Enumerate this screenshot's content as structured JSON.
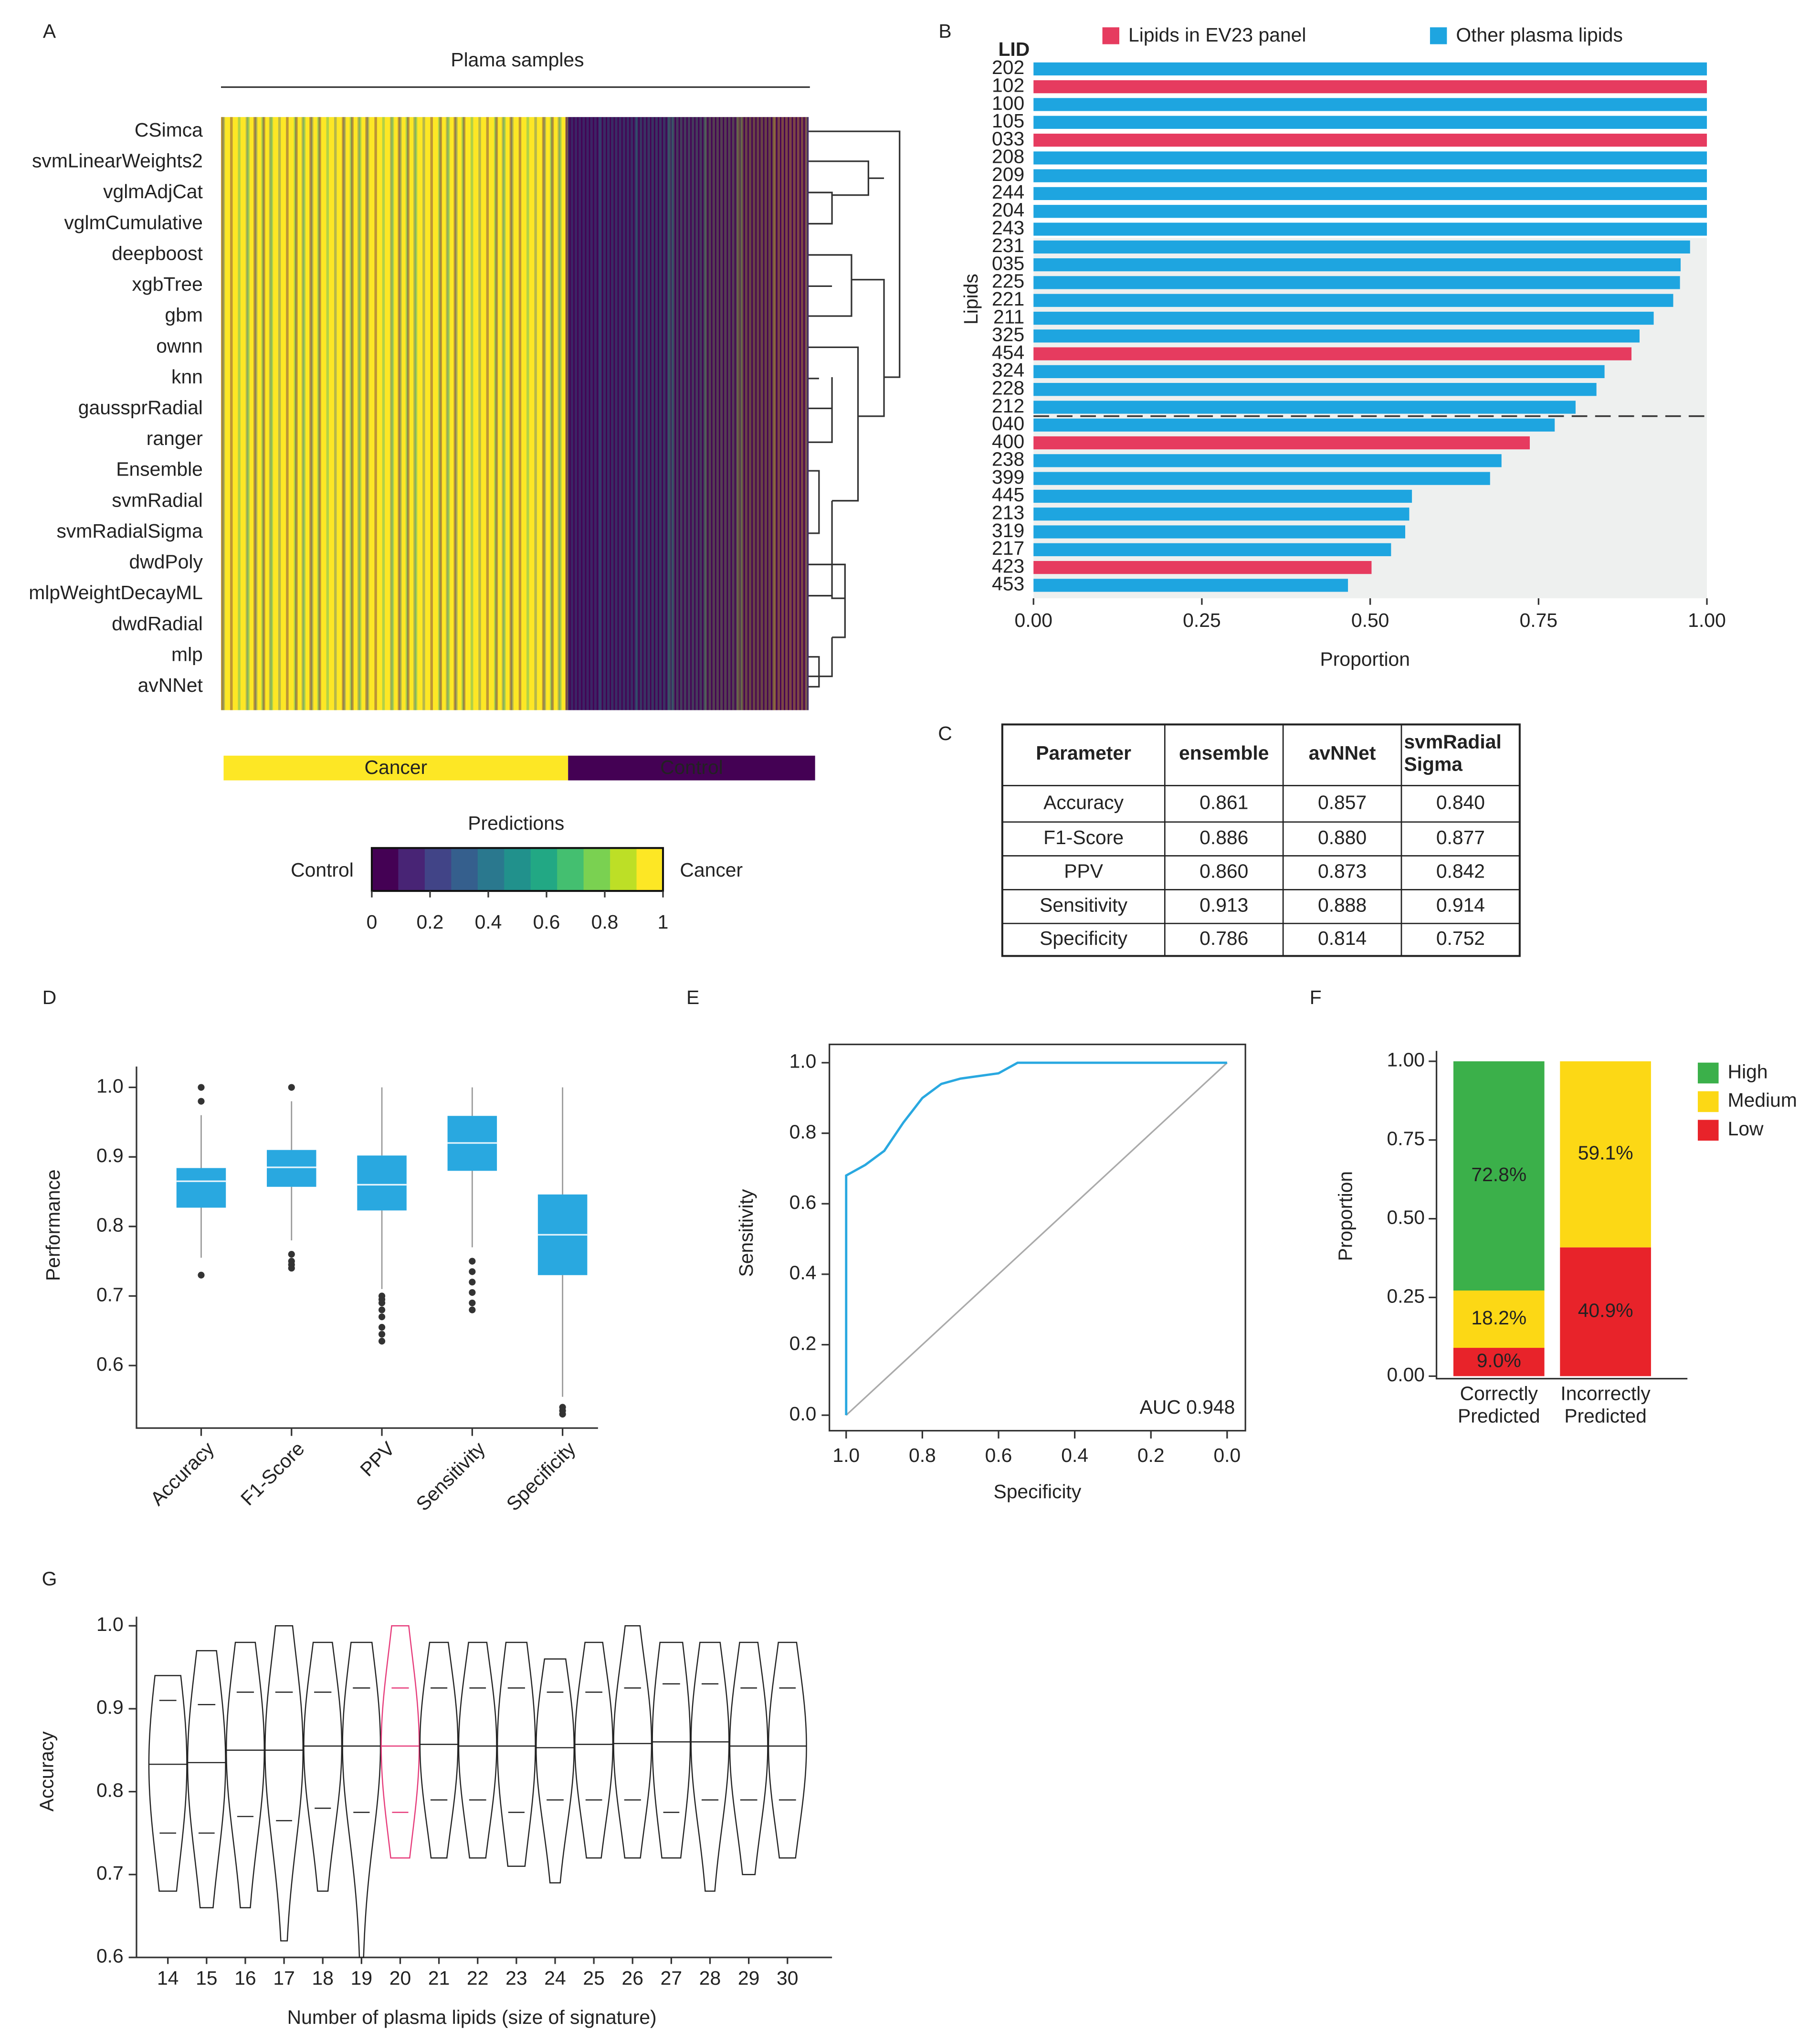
{
  "panel_labels": [
    "A",
    "B",
    "C",
    "D",
    "E",
    "F",
    "G"
  ],
  "chart_data": [
    {
      "type": "heatmap",
      "title": "Plama samples",
      "rows": [
        "CSimca",
        "svmLinearWeights2",
        "vglmAdjCat",
        "vglmCumulative",
        "deepboost",
        "xgbTree",
        "gbm",
        "ownn",
        "knn",
        "gaussprRadial",
        "ranger",
        "Ensemble",
        "svmRadial",
        "svmRadialSigma",
        "dwdPoly",
        "mlpWeightDecayML",
        "dwdRadial",
        "mlp",
        "avNNet"
      ],
      "row_colors": [
        "#222",
        "#222",
        "#222",
        "#222",
        "#222",
        "#222",
        "#222",
        "#222",
        "#222",
        "#222",
        "#222",
        "#29a8e0",
        "#222",
        "#222",
        "#222",
        "#222",
        "#222",
        "#222",
        "#222"
      ],
      "groups": [
        "Cancer",
        "Control"
      ],
      "group_colors": [
        "#fde725",
        "#440154"
      ],
      "colormap": "viridis",
      "colorbar": {
        "title": "Predictions",
        "low_label": "Control",
        "high_label": "Cancer",
        "lim": [
          0,
          1
        ],
        "ticks": [
          0,
          0.2,
          0.4,
          0.6,
          0.8,
          1
        ]
      }
    },
    {
      "type": "barh",
      "category_header": "LID",
      "ylabel": "Lipids",
      "xlabel": "Proportion",
      "categories": [
        "202",
        "102",
        "100",
        "105",
        "033",
        "208",
        "209",
        "244",
        "204",
        "243",
        "231",
        "035",
        "225",
        "221",
        "211",
        "325",
        "454",
        "324",
        "228",
        "212",
        "040",
        "400",
        "238",
        "399",
        "445",
        "213",
        "319",
        "217",
        "423",
        "453"
      ],
      "series": [
        {
          "name": "Lipids in EV23 panel",
          "color": "#e63b5f",
          "values": [
            null,
            1.0,
            null,
            null,
            1.0,
            null,
            null,
            null,
            null,
            null,
            null,
            null,
            null,
            null,
            null,
            null,
            0.888,
            null,
            null,
            null,
            null,
            0.737,
            null,
            null,
            null,
            null,
            null,
            null,
            0.502,
            null
          ]
        },
        {
          "name": "Other plasma lipids",
          "color": "#1ea5e0",
          "values": [
            1.0,
            null,
            1.0,
            1.0,
            null,
            1.0,
            1.0,
            1.0,
            1.0,
            1.0,
            0.975,
            0.961,
            0.96,
            0.95,
            0.921,
            0.9,
            null,
            0.848,
            0.836,
            0.805,
            0.774,
            null,
            0.695,
            0.678,
            0.562,
            0.558,
            0.552,
            0.531,
            null,
            0.467
          ]
        }
      ],
      "xlim": [
        0,
        1
      ],
      "xticks": [
        {
          "value": 0,
          "label": "0.00"
        },
        {
          "value": 0.25,
          "label": "0.25"
        },
        {
          "value": 0.5,
          "label": "0.50"
        },
        {
          "value": 0.75,
          "label": "0.75"
        },
        {
          "value": 1,
          "label": "1.00"
        }
      ]
    },
    {
      "type": "box",
      "ylabel": "Performance",
      "categories": [
        "Accuracy",
        "F1-Score",
        "PPV",
        "Sensitivity",
        "Specificity"
      ],
      "whisker_low": [
        0.755,
        0.78,
        0.71,
        0.77,
        0.555
      ],
      "q1": [
        0.827,
        0.857,
        0.823,
        0.88,
        0.73
      ],
      "median": [
        0.865,
        0.885,
        0.86,
        0.92,
        0.788
      ],
      "q3": [
        0.884,
        0.91,
        0.902,
        0.959,
        0.846
      ],
      "whisker_high": [
        0.96,
        0.98,
        1.0,
        1.0,
        1.0
      ],
      "outliers": [
        [
          1.0,
          0.98,
          0.73
        ],
        [
          1.0,
          0.76,
          0.75,
          0.745,
          0.74
        ],
        [
          0.7,
          0.695,
          0.69,
          0.68,
          0.67,
          0.655,
          0.645,
          0.635
        ],
        [
          0.75,
          0.735,
          0.72,
          0.705,
          0.69,
          0.68
        ],
        [
          0.54,
          0.535,
          0.53
        ]
      ],
      "color": "#29a8e0",
      "ylim": [
        0.51,
        1.03
      ],
      "yticks": [
        0.6,
        0.7,
        0.8,
        0.9,
        {
          "value": 1,
          "label": "1.0"
        }
      ]
    },
    {
      "type": "line",
      "xlabel": "Specificity",
      "ylabel": "Sensitivity",
      "annotation": "AUC 0.948",
      "x": [
        1,
        1,
        0.95,
        0.9,
        0.85,
        0.8,
        0.75,
        0.7,
        0.6,
        0.55,
        0
      ],
      "y": [
        0,
        0.68,
        0.71,
        0.75,
        0.83,
        0.9,
        0.94,
        0.955,
        0.97,
        1,
        1
      ],
      "color": "#29a8e0",
      "reference_color": "#aaaaaa",
      "xlim": [
        1.044,
        -0.048
      ],
      "ylim": [
        -0.044,
        1.052
      ],
      "xticks": [
        {
          "value": 1,
          "label": "1.0"
        },
        0.8,
        0.6,
        0.4,
        0.2,
        {
          "value": 0,
          "label": "0.0"
        }
      ],
      "yticks": [
        {
          "value": 0,
          "label": "0.0"
        },
        0.2,
        0.4,
        0.6,
        0.8,
        {
          "value": 1,
          "label": "1.0"
        }
      ]
    },
    {
      "type": "stacked_bar",
      "ylabel": "Proportion",
      "categories": [
        [
          "Correctly",
          "Predicted"
        ],
        [
          "Incorrectly",
          "Predicted"
        ]
      ],
      "series": [
        {
          "name": "High",
          "color": "#3bb04a",
          "values": [
            0.728,
            null
          ],
          "value_labels": [
            "72.8%",
            null
          ]
        },
        {
          "name": "Medium",
          "color": "#fcd815",
          "values": [
            0.182,
            0.591
          ],
          "value_labels": [
            "18.2%",
            "59.1%"
          ]
        },
        {
          "name": "Low",
          "color": "#e8232a",
          "values": [
            0.09,
            0.409
          ],
          "value_labels": [
            "9.0%",
            "40.9%"
          ]
        }
      ],
      "ylim": [
        -0.008,
        1.033
      ],
      "yticks": [
        {
          "value": 0,
          "label": "0.00"
        },
        {
          "value": 0.25,
          "label": "0.25"
        },
        {
          "value": 0.5,
          "label": "0.50"
        },
        {
          "value": 0.75,
          "label": "0.75"
        },
        {
          "value": 1,
          "label": "1.00"
        }
      ]
    },
    {
      "type": "violin",
      "xlabel": "Number of plasma lipids (size of signature)",
      "ylabel": "Accuracy",
      "x": [
        14,
        15,
        16,
        17,
        18,
        19,
        20,
        21,
        22,
        23,
        24,
        25,
        26,
        27,
        28,
        29,
        30
      ],
      "min": [
        0.68,
        0.66,
        0.66,
        0.62,
        0.68,
        0.6,
        0.72,
        0.72,
        0.72,
        0.71,
        0.69,
        0.72,
        0.72,
        0.72,
        0.68,
        0.7,
        0.72
      ],
      "q1": [
        0.75,
        0.75,
        0.77,
        0.765,
        0.78,
        0.775,
        0.775,
        0.79,
        0.79,
        0.775,
        0.79,
        0.79,
        0.79,
        0.775,
        0.79,
        0.79,
        0.79
      ],
      "median": [
        0.833,
        0.835,
        0.85,
        0.85,
        0.855,
        0.855,
        0.855,
        0.857,
        0.855,
        0.855,
        0.853,
        0.857,
        0.858,
        0.86,
        0.86,
        0.855,
        0.855
      ],
      "q3": [
        0.91,
        0.905,
        0.92,
        0.92,
        0.92,
        0.925,
        0.925,
        0.925,
        0.925,
        0.925,
        0.92,
        0.92,
        0.925,
        0.93,
        0.93,
        0.925,
        0.925
      ],
      "max": [
        0.94,
        0.97,
        0.98,
        1.0,
        0.98,
        0.98,
        1.0,
        0.98,
        0.98,
        0.98,
        0.96,
        0.98,
        1.0,
        0.98,
        0.98,
        0.98,
        0.98
      ],
      "colors": [
        "#222",
        "#222",
        "#222",
        "#222",
        "#222",
        "#222",
        "#e63b7a",
        "#222",
        "#222",
        "#222",
        "#222",
        "#222",
        "#222",
        "#222",
        "#222",
        "#222",
        "#222"
      ],
      "xlim": [
        13.19,
        31.15
      ],
      "ylim": [
        0.6,
        1.011
      ],
      "yticks": [
        0.6,
        0.7,
        0.8,
        0.9,
        {
          "value": 1,
          "label": "1.0"
        }
      ]
    }
  ],
  "table": {
    "header": [
      "Parameter",
      "ensemble",
      "avNNet",
      [
        "svmRadial",
        "Sigma"
      ]
    ],
    "rows": [
      [
        "Accuracy",
        "0.861",
        "0.857",
        "0.840"
      ],
      [
        "F1-Score",
        "0.886",
        "0.880",
        "0.877"
      ],
      [
        "PPV",
        "0.860",
        "0.873",
        "0.842"
      ],
      [
        "Sensitivity",
        "0.913",
        "0.888",
        "0.914"
      ],
      [
        "Specificity",
        "0.786",
        "0.814",
        "0.752"
      ]
    ]
  }
}
